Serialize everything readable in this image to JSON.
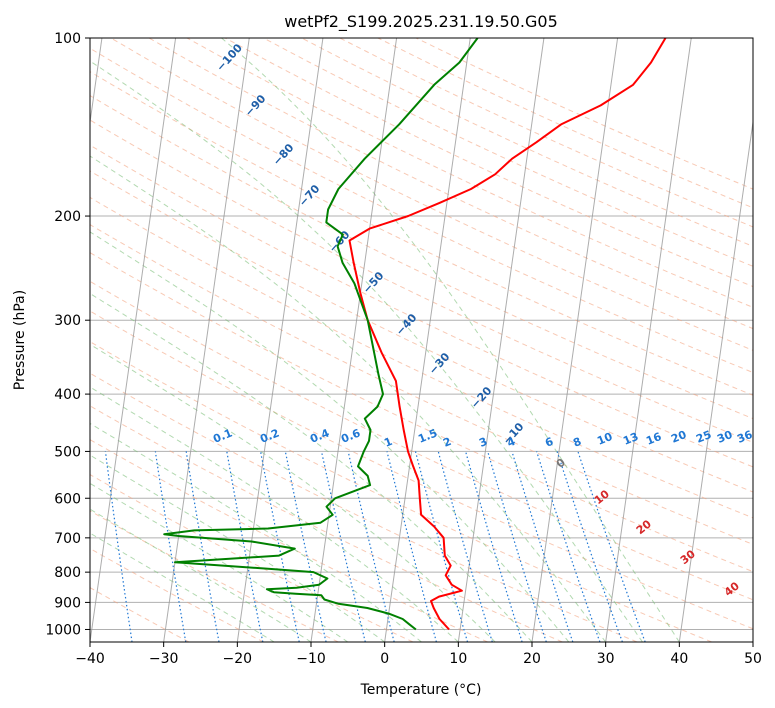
{
  "chart_data": {
    "type": "line",
    "subtype": "skew-t log-p diagram",
    "title": "wetPf2_S199.2025.231.19.50.G05",
    "xlabel": "Temperature (°C)",
    "ylabel": "Pressure (hPa)",
    "xlim": [
      -40,
      50
    ],
    "ylim": [
      1050,
      100
    ],
    "y_scale": "log",
    "grid": true,
    "x_ticks": [
      "−40",
      "−30",
      "−20",
      "−10",
      "0",
      "10",
      "20",
      "30",
      "40",
      "50"
    ],
    "y_ticks": [
      "100",
      "200",
      "300",
      "400",
      "500",
      "600",
      "700",
      "800",
      "900",
      "1000"
    ],
    "series": [
      {
        "color": "#ff0000",
        "points": [
          [
            8.5,
            1000
          ],
          [
            7.0,
            960
          ],
          [
            6.0,
            920
          ],
          [
            5.5,
            895
          ],
          [
            6.5,
            880
          ],
          [
            9.5,
            860
          ],
          [
            8.0,
            840
          ],
          [
            7.0,
            810
          ],
          [
            7.5,
            780
          ],
          [
            6.5,
            750
          ],
          [
            6.0,
            700
          ],
          [
            4.5,
            670
          ],
          [
            2.5,
            640
          ],
          [
            2.0,
            600
          ],
          [
            1.5,
            560
          ],
          [
            0.5,
            530
          ],
          [
            -0.5,
            500
          ],
          [
            -1.5,
            460
          ],
          [
            -2.5,
            420
          ],
          [
            -3.5,
            380
          ],
          [
            -6.0,
            340
          ],
          [
            -8.5,
            300
          ],
          [
            -10.0,
            270
          ],
          [
            -11.5,
            240
          ],
          [
            -12.5,
            220
          ],
          [
            -10.0,
            210
          ],
          [
            -5.0,
            200
          ],
          [
            -1.0,
            190
          ],
          [
            3.0,
            180
          ],
          [
            6.0,
            170
          ],
          [
            8.0,
            160
          ],
          [
            11.0,
            150
          ],
          [
            14.0,
            140
          ],
          [
            19.0,
            130
          ],
          [
            23.0,
            120
          ],
          [
            25.0,
            110
          ],
          [
            26.5,
            100
          ]
        ]
      },
      {
        "color": "#008000",
        "points": [
          [
            4.0,
            1000
          ],
          [
            3.0,
            980
          ],
          [
            2.0,
            960
          ],
          [
            0.0,
            940
          ],
          [
            -3.0,
            920
          ],
          [
            -7.0,
            905
          ],
          [
            -9.0,
            890
          ],
          [
            -9.5,
            875
          ],
          [
            -13.0,
            870
          ],
          [
            -16.0,
            865
          ],
          [
            -17.0,
            855
          ],
          [
            -13.0,
            850
          ],
          [
            -10.0,
            840
          ],
          [
            -9.0,
            820
          ],
          [
            -11.0,
            800
          ],
          [
            -17.0,
            790
          ],
          [
            -30.0,
            770
          ],
          [
            -16.0,
            750
          ],
          [
            -14.0,
            730
          ],
          [
            -20.0,
            710
          ],
          [
            -30.0,
            695
          ],
          [
            -32.0,
            690
          ],
          [
            -28.0,
            680
          ],
          [
            -18.0,
            675
          ],
          [
            -11.0,
            660
          ],
          [
            -9.5,
            640
          ],
          [
            -10.5,
            620
          ],
          [
            -9.5,
            600
          ],
          [
            -5.0,
            570
          ],
          [
            -5.5,
            550
          ],
          [
            -7.0,
            530
          ],
          [
            -6.5,
            500
          ],
          [
            -6.0,
            480
          ],
          [
            -6.0,
            460
          ],
          [
            -7.0,
            440
          ],
          [
            -5.5,
            420
          ],
          [
            -5.0,
            400
          ],
          [
            -6.0,
            370
          ],
          [
            -7.0,
            340
          ],
          [
            -8.5,
            300
          ],
          [
            -11.0,
            260
          ],
          [
            -13.0,
            240
          ],
          [
            -14.0,
            225
          ],
          [
            -13.5,
            215
          ],
          [
            -16.0,
            205
          ],
          [
            -16.0,
            195
          ],
          [
            -15.0,
            180
          ],
          [
            -12.0,
            160
          ],
          [
            -8.0,
            140
          ],
          [
            -4.0,
            120
          ],
          [
            -1.0,
            110
          ],
          [
            1.0,
            100
          ]
        ]
      }
    ],
    "mixing_ratio_labels": [
      "0.1",
      "0.2",
      "0.4",
      "0.6",
      "1",
      "1.5",
      "2",
      "3",
      "4",
      "6",
      "8",
      "10",
      "13",
      "16",
      "20",
      "25",
      "30",
      "36"
    ],
    "isotherm_labels": [
      "−100",
      "−90",
      "−80",
      "−70",
      "−60",
      "−50",
      "−40",
      "−30",
      "−20",
      "−10"
    ],
    "extra_labels": [
      "0",
      "10",
      "20",
      "30",
      "40"
    ],
    "colors": {
      "temperature": "#ff0000",
      "dewpoint": "#008000",
      "isotherm": "#999999",
      "dry_adiabat": "#f4a582",
      "moist_adiabat": "#7fbf7b",
      "mixing_ratio": "#1f77d4",
      "label_blue": "#1f5fa8",
      "label_red": "#d62728"
    }
  }
}
